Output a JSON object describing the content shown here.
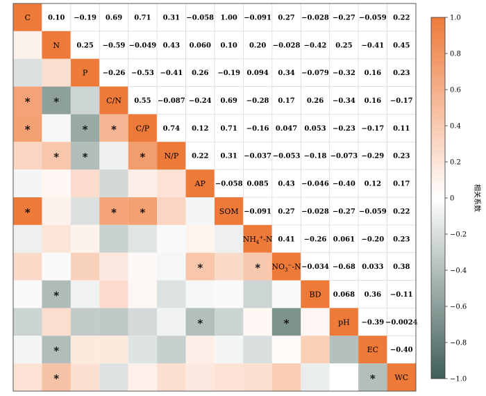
{
  "chart_data": {
    "type": "heatmap",
    "variables": [
      "C",
      "N",
      "P",
      "C/N",
      "C/P",
      "N/P",
      "AP",
      "SOM",
      "NH4+-N",
      "NO3−-N",
      "BD",
      "pH",
      "EC",
      "WC"
    ],
    "diagonal_labels": [
      {
        "base": "C"
      },
      {
        "base": "N"
      },
      {
        "base": "P"
      },
      {
        "base": "C/N"
      },
      {
        "base": "C/P"
      },
      {
        "base": "N/P"
      },
      {
        "base": "AP"
      },
      {
        "base": "SOM"
      },
      {
        "base": "NH",
        "sub": "4",
        "sup": "+",
        "suffix": "-N"
      },
      {
        "base": "NO",
        "sub": "3",
        "sup": "−",
        "suffix": "-N"
      },
      {
        "base": "BD"
      },
      {
        "base": "pH"
      },
      {
        "base": "EC"
      },
      {
        "base": "WC"
      }
    ],
    "matrix": [
      [
        1.0,
        0.1,
        -0.19,
        0.69,
        0.71,
        0.31,
        -0.058,
        1.0,
        -0.091,
        0.27,
        -0.028,
        -0.27,
        -0.059,
        0.22
      ],
      [
        0.1,
        1.0,
        0.25,
        -0.59,
        -0.049,
        0.43,
        0.06,
        0.1,
        0.2,
        -0.028,
        -0.42,
        0.25,
        -0.41,
        0.45
      ],
      [
        -0.19,
        0.25,
        1.0,
        -0.26,
        -0.53,
        -0.41,
        0.26,
        -0.19,
        0.094,
        0.34,
        -0.079,
        -0.32,
        0.16,
        0.23
      ],
      [
        0.69,
        -0.59,
        -0.26,
        1.0,
        0.55,
        -0.087,
        -0.24,
        0.69,
        -0.28,
        0.17,
        0.26,
        -0.34,
        0.16,
        -0.17
      ],
      [
        0.71,
        -0.049,
        -0.53,
        0.55,
        1.0,
        0.74,
        0.12,
        0.71,
        -0.16,
        0.047,
        0.053,
        -0.23,
        -0.17,
        0.11
      ],
      [
        0.31,
        0.43,
        -0.41,
        -0.087,
        0.74,
        1.0,
        0.22,
        0.31,
        -0.037,
        -0.053,
        -0.18,
        -0.073,
        -0.29,
        0.23
      ],
      [
        -0.058,
        0.06,
        0.26,
        -0.24,
        0.12,
        0.22,
        1.0,
        -0.058,
        0.085,
        0.43,
        -0.046,
        -0.4,
        0.12,
        0.17
      ],
      [
        1.0,
        0.1,
        -0.19,
        0.69,
        0.71,
        0.31,
        -0.058,
        1.0,
        -0.091,
        0.27,
        -0.028,
        -0.27,
        -0.059,
        0.22
      ],
      [
        -0.091,
        0.2,
        0.094,
        -0.28,
        -0.16,
        -0.037,
        0.085,
        -0.091,
        1.0,
        0.41,
        -0.26,
        0.061,
        -0.2,
        0.23
      ],
      [
        0.27,
        -0.028,
        0.34,
        0.17,
        0.047,
        -0.053,
        0.43,
        0.27,
        0.41,
        1.0,
        -0.034,
        -0.68,
        0.033,
        0.38
      ],
      [
        -0.028,
        -0.42,
        -0.079,
        0.26,
        0.053,
        -0.18,
        -0.046,
        -0.028,
        -0.26,
        -0.034,
        1.0,
        0.068,
        0.36,
        -0.11
      ],
      [
        -0.27,
        0.25,
        -0.32,
        -0.34,
        -0.23,
        -0.073,
        -0.4,
        -0.27,
        0.061,
        -0.68,
        0.068,
        1.0,
        -0.39,
        -0.0024
      ],
      [
        -0.059,
        -0.41,
        0.16,
        0.16,
        -0.17,
        -0.29,
        0.12,
        -0.059,
        -0.2,
        0.033,
        0.36,
        -0.39,
        1.0,
        -0.4
      ],
      [
        0.22,
        0.45,
        0.23,
        -0.17,
        0.11,
        0.23,
        0.17,
        0.22,
        0.23,
        0.38,
        -0.11,
        -0.0024,
        -0.4,
        1.0
      ]
    ],
    "upper_text": [
      [
        "",
        "0.10",
        "−0.19",
        "0.69",
        "0.71",
        "0.31",
        "−0.058",
        "1.00",
        "−0.091",
        "0.27",
        "−0.028",
        "−0.27",
        "−0.059",
        "0.22"
      ],
      [
        "",
        "",
        "0.25",
        "−0.59",
        "−0.049",
        "0.43",
        "0.060",
        "0.10",
        "0.20",
        "−0.028",
        "−0.42",
        "0.25",
        "−0.41",
        "0.45"
      ],
      [
        "",
        "",
        "",
        "−0.26",
        "−0.53",
        "−0.41",
        "0.26",
        "−0.19",
        "0.094",
        "0.34",
        "−0.079",
        "−0.32",
        "0.16",
        "0.23"
      ],
      [
        "",
        "",
        "",
        "",
        "0.55",
        "−0.087",
        "−0.24",
        "0.69",
        "−0.28",
        "0.17",
        "0.26",
        "−0.34",
        "0.16",
        "−0.17"
      ],
      [
        "",
        "",
        "",
        "",
        "",
        "0.74",
        "0.12",
        "0.71",
        "−0.16",
        "0.047",
        "0.053",
        "−0.23",
        "−0.17",
        "0.11"
      ],
      [
        "",
        "",
        "",
        "",
        "",
        "",
        "0.22",
        "0.31",
        "−0.037",
        "−0.053",
        "−0.18",
        "−0.073",
        "−0.29",
        "0.23"
      ],
      [
        "",
        "",
        "",
        "",
        "",
        "",
        "",
        "−0.058",
        "0.085",
        "0.43",
        "−0.046",
        "−0.40",
        "0.12",
        "0.17"
      ],
      [
        "",
        "",
        "",
        "",
        "",
        "",
        "",
        "",
        "−0.091",
        "0.27",
        "−0.028",
        "−0.27",
        "−0.059",
        "0.22"
      ],
      [
        "",
        "",
        "",
        "",
        "",
        "",
        "",
        "",
        "",
        "0.41",
        "−0.26",
        "0.061",
        "−0.20",
        "0.23"
      ],
      [
        "",
        "",
        "",
        "",
        "",
        "",
        "",
        "",
        "",
        "",
        "−0.034",
        "−0.68",
        "0.033",
        "0.38"
      ],
      [
        "",
        "",
        "",
        "",
        "",
        "",
        "",
        "",
        "",
        "",
        "",
        "0.068",
        "0.36",
        "−0.11"
      ],
      [
        "",
        "",
        "",
        "",
        "",
        "",
        "",
        "",
        "",
        "",
        "",
        "",
        "−0.39",
        "−0.0024"
      ],
      [
        "",
        "",
        "",
        "",
        "",
        "",
        "",
        "",
        "",
        "",
        "",
        "",
        "",
        "−0.40"
      ],
      [
        "",
        "",
        "",
        "",
        "",
        "",
        "",
        "",
        "",
        "",
        "",
        "",
        "",
        ""
      ]
    ],
    "significance_marker": "*",
    "significant_cells": [
      [
        3,
        0
      ],
      [
        3,
        1
      ],
      [
        4,
        0
      ],
      [
        4,
        2
      ],
      [
        4,
        3
      ],
      [
        5,
        1
      ],
      [
        5,
        2
      ],
      [
        5,
        4
      ],
      [
        7,
        0
      ],
      [
        7,
        3
      ],
      [
        7,
        4
      ],
      [
        9,
        6
      ],
      [
        9,
        8
      ],
      [
        10,
        1
      ],
      [
        11,
        6
      ],
      [
        11,
        9
      ],
      [
        12,
        1
      ],
      [
        13,
        1
      ],
      [
        13,
        12
      ]
    ],
    "colorbar": {
      "label": "相关系数",
      "range": [
        -1.0,
        1.0
      ],
      "ticks": [
        1.0,
        0.8,
        0.6,
        0.4,
        0.2,
        0,
        -0.2,
        -0.4,
        -0.6,
        -0.8,
        -1.0
      ],
      "tick_labels": [
        "1.0",
        "0.8",
        "0.6",
        "0.4",
        "0.2",
        "0",
        "−0.2",
        "−0.4",
        "−0.6",
        "−0.8",
        "−1.0"
      ],
      "position": "right"
    },
    "colors": {
      "positive": "#EE7A3A",
      "neutral": "#FFFFFF",
      "negative": "#3F5E58",
      "grid": "#DDDDDD",
      "frame": "#555555"
    }
  }
}
